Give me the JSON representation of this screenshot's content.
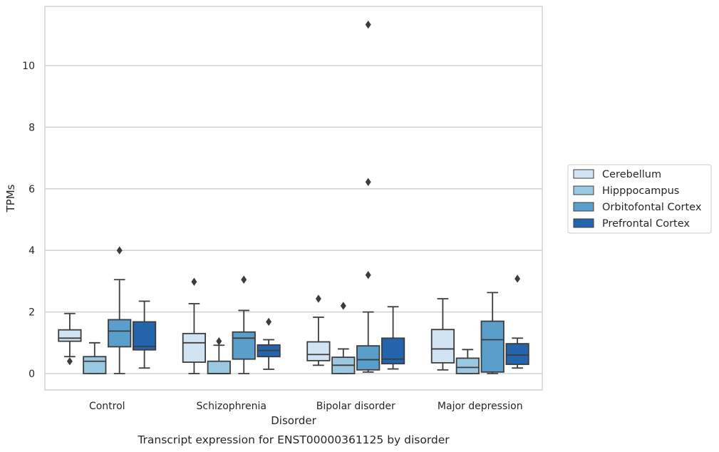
{
  "chart_data": {
    "type": "boxplot",
    "xlabel": "Disorder",
    "ylabel": "TPMs",
    "caption": "Transcript expression for ENST00000361125 by disorder",
    "ylim": [
      -0.55,
      11.95
    ],
    "yticks": [
      0,
      2,
      4,
      6,
      8,
      10
    ],
    "grid": "horizontal",
    "legend_position": "right-center",
    "categories": [
      "Control",
      "Schizophrenia",
      "Bipolar disorder",
      "Major depression"
    ],
    "series": [
      {
        "name": "Cerebellum",
        "color": "#d2e3f3",
        "boxes": [
          {
            "whisker_low": 0.55,
            "q1": 1.05,
            "median": 1.15,
            "q3": 1.42,
            "whisker_high": 1.95,
            "outliers": [
              0.4
            ]
          },
          {
            "whisker_low": 0.0,
            "q1": 0.37,
            "median": 1.0,
            "q3": 1.3,
            "whisker_high": 2.27,
            "outliers": [
              2.98
            ]
          },
          {
            "whisker_low": 0.27,
            "q1": 0.42,
            "median": 0.62,
            "q3": 1.03,
            "whisker_high": 1.83,
            "outliers": [
              2.43
            ]
          },
          {
            "whisker_low": 0.12,
            "q1": 0.35,
            "median": 0.8,
            "q3": 1.43,
            "whisker_high": 2.43,
            "outliers": []
          }
        ]
      },
      {
        "name": "Hipppocampus",
        "color": "#9ac8e0",
        "boxes": [
          {
            "whisker_low": 0.0,
            "q1": 0.0,
            "median": 0.4,
            "q3": 0.55,
            "whisker_high": 1.0,
            "outliers": []
          },
          {
            "whisker_low": 0.0,
            "q1": 0.0,
            "median": 0.0,
            "q3": 0.4,
            "whisker_high": 0.92,
            "outliers": [
              1.05
            ]
          },
          {
            "whisker_low": 0.0,
            "q1": 0.0,
            "median": 0.27,
            "q3": 0.53,
            "whisker_high": 0.8,
            "outliers": [
              2.2
            ]
          },
          {
            "whisker_low": 0.0,
            "q1": 0.0,
            "median": 0.2,
            "q3": 0.5,
            "whisker_high": 0.78,
            "outliers": []
          }
        ]
      },
      {
        "name": "Orbitofontal Cortex",
        "color": "#5a9ecc",
        "boxes": [
          {
            "whisker_low": 0.0,
            "q1": 0.87,
            "median": 1.38,
            "q3": 1.75,
            "whisker_high": 3.05,
            "outliers": [
              4.0
            ]
          },
          {
            "whisker_low": 0.0,
            "q1": 0.47,
            "median": 1.15,
            "q3": 1.35,
            "whisker_high": 2.05,
            "outliers": [
              3.05
            ]
          },
          {
            "whisker_low": 0.05,
            "q1": 0.12,
            "median": 0.45,
            "q3": 0.9,
            "whisker_high": 2.0,
            "outliers": [
              3.2,
              6.22,
              11.33
            ]
          },
          {
            "whisker_low": 0.0,
            "q1": 0.05,
            "median": 1.1,
            "q3": 1.7,
            "whisker_high": 2.63,
            "outliers": []
          }
        ]
      },
      {
        "name": "Prefrontal Cortex",
        "color": "#2464ad",
        "boxes": [
          {
            "whisker_low": 0.18,
            "q1": 0.77,
            "median": 0.88,
            "q3": 1.68,
            "whisker_high": 2.35,
            "outliers": []
          },
          {
            "whisker_low": 0.14,
            "q1": 0.55,
            "median": 0.75,
            "q3": 0.93,
            "whisker_high": 1.1,
            "outliers": [
              1.68
            ]
          },
          {
            "whisker_low": 0.15,
            "q1": 0.32,
            "median": 0.47,
            "q3": 1.15,
            "whisker_high": 2.17,
            "outliers": []
          },
          {
            "whisker_low": 0.18,
            "q1": 0.3,
            "median": 0.6,
            "q3": 0.97,
            "whisker_high": 1.15,
            "outliers": [
              3.08
            ]
          }
        ]
      }
    ]
  }
}
